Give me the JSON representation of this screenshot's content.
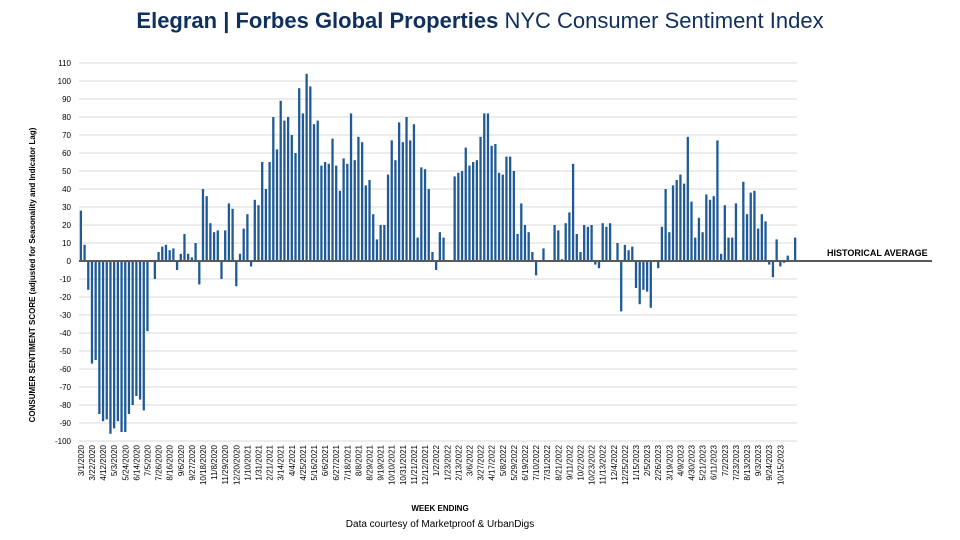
{
  "title": {
    "brand": "Elegran | Forbes Global Properties",
    "rest": " NYC Consumer Sentiment Index"
  },
  "chart_data": {
    "type": "bar",
    "title": "Elegran | Forbes Global Properties NYC Consumer Sentiment Index",
    "xlabel": "WEEK ENDING",
    "ylabel": "CONSUMER SENTIMENT SCORE (adjusted for Seasonality and Indicator Lag)",
    "ylim": [
      -100,
      110
    ],
    "ytick_step": 10,
    "grid": true,
    "bar_color": "#1f5a96",
    "reference_line": {
      "value": 0,
      "label": "HISTORICAL AVERAGE",
      "color": "#595959"
    },
    "start_week": "3/1/2020",
    "tick_every_weeks": 3,
    "x_tick_labels": [
      "3/1/2020",
      "3/22/2020",
      "4/12/2020",
      "5/3/2020",
      "5/24/2020",
      "6/14/2020",
      "7/5/2020",
      "7/26/2020",
      "8/16/2020",
      "9/6/2020",
      "9/27/2020",
      "10/18/2020",
      "11/8/2020",
      "11/29/2020",
      "12/20/2020",
      "1/10/2021",
      "1/31/2021",
      "2/21/2021",
      "3/14/2021",
      "4/4/2021",
      "4/25/2021",
      "5/16/2021",
      "6/6/2021",
      "6/27/2021",
      "7/18/2021",
      "8/8/2021",
      "8/29/2021",
      "9/19/2021",
      "10/10/2021",
      "10/31/2021",
      "11/21/2021",
      "12/12/2021",
      "1/2/2022",
      "1/23/2022",
      "2/13/2022",
      "3/6/2022",
      "3/27/2022",
      "4/17/2022",
      "5/8/2022",
      "5/29/2022",
      "6/19/2022",
      "7/10/2022",
      "7/31/2022",
      "8/21/2022",
      "9/11/2022",
      "10/2/2022",
      "10/23/2022",
      "11/13/2022",
      "12/4/2022",
      "12/25/2022",
      "1/15/2023",
      "2/5/2023",
      "2/26/2023",
      "3/19/2023",
      "4/9/2023",
      "4/30/2023",
      "5/21/2023",
      "6/11/2023",
      "7/2/2023",
      "7/23/2023",
      "8/13/2023",
      "9/3/2023",
      "9/24/2023",
      "10/15/2023"
    ],
    "values": [
      28,
      9,
      -16,
      -57,
      -55,
      -85,
      -89,
      -88,
      -96,
      -93,
      -89,
      -95,
      -95,
      -85,
      -80,
      -75,
      -77,
      -83,
      -39,
      0,
      -10,
      5,
      8,
      9,
      6,
      7,
      -5,
      4,
      15,
      4,
      2,
      10,
      -13,
      40,
      36,
      21,
      16,
      17,
      -10,
      17,
      32,
      29,
      -14,
      4,
      18,
      26,
      -3,
      34,
      31,
      55,
      40,
      55,
      80,
      62,
      89,
      78,
      80,
      70,
      60,
      96,
      82,
      104,
      97,
      76,
      78,
      53,
      55,
      54,
      68,
      53,
      39,
      57,
      54,
      82,
      56,
      69,
      66,
      42,
      45,
      26,
      12,
      20,
      20,
      48,
      67,
      56,
      77,
      66,
      80,
      67,
      76,
      13,
      52,
      51,
      40,
      5,
      -5,
      16,
      13,
      0,
      0,
      47,
      49,
      50,
      63,
      53,
      55,
      56,
      69,
      82,
      82,
      64,
      65,
      49,
      48,
      58,
      58,
      50,
      15,
      32,
      20,
      16,
      5,
      -8,
      0,
      7,
      0,
      0,
      20,
      17,
      1,
      21,
      27,
      54,
      15,
      5,
      20,
      19,
      20,
      -2,
      -4,
      21,
      19,
      21,
      0,
      10,
      -28,
      9,
      6,
      8,
      -15,
      -24,
      -16,
      -17,
      -26,
      0,
      -4,
      19,
      40,
      16,
      42,
      45,
      48,
      43,
      69,
      33,
      13,
      24,
      16,
      37,
      34,
      36,
      67,
      4,
      31,
      13,
      13,
      32,
      0,
      44,
      26,
      38,
      39,
      18,
      26,
      22,
      -2,
      -9,
      12,
      -3,
      -1,
      3,
      0,
      13
    ]
  },
  "footer": {
    "credit": "Data courtesy of Marketproof & UrbanDigs"
  }
}
